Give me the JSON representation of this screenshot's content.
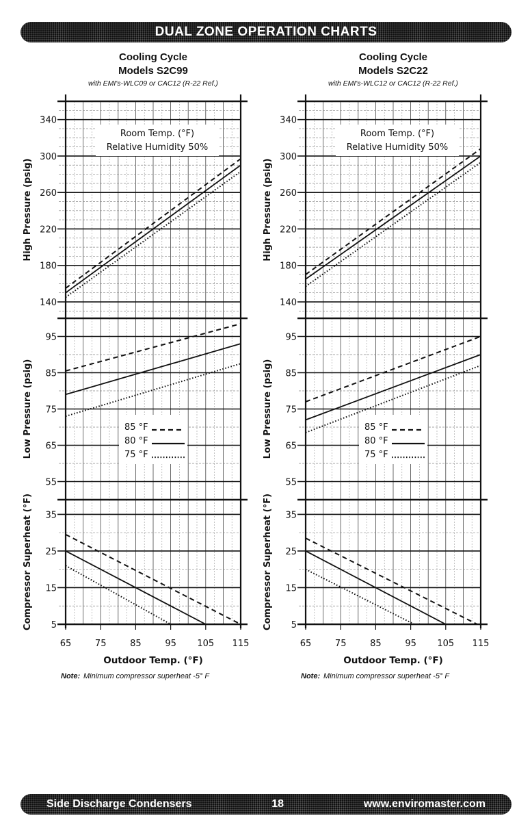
{
  "header": {
    "title": "DUAL ZONE OPERATION CHARTS"
  },
  "footer": {
    "left": "Side Discharge Condensers",
    "page": "18",
    "right": "www.enviromaster.com"
  },
  "legend": {
    "room_temp": "Room Temp. (°F)",
    "humidity": "Relative Humidity 50%",
    "entries": [
      {
        "label": "85 °F",
        "style": "dashed"
      },
      {
        "label": "80 °F",
        "style": "solid"
      },
      {
        "label": "75 °F",
        "style": "dotted"
      }
    ]
  },
  "chart_data": [
    {
      "type": "line",
      "title": "Cooling Cycle",
      "subtitle": "Models S2C99",
      "caption": "with EMI's-WLC09 or CAC12 (R-22 Ref.)",
      "xlabel": "Outdoor Temp. (°F)",
      "note_label": "Note:",
      "note": "Minimum compressor superheat -5° F",
      "x_ticks": [
        "65",
        "75",
        "85",
        "95",
        "105",
        "115"
      ],
      "xlim": [
        65,
        115
      ],
      "panels": [
        {
          "ylabel": "High Pressure (psig)",
          "ylim": [
            122,
            360
          ],
          "y_ticks": [
            "340",
            "300",
            "260",
            "220",
            "180",
            "140"
          ],
          "series": [
            {
              "name": "85 °F",
              "points": [
                [
                  65,
                  155
                ],
                [
                  115,
                  297
                ]
              ]
            },
            {
              "name": "80 °F",
              "points": [
                [
                  65,
                  150
                ],
                [
                  115,
                  290
                ]
              ]
            },
            {
              "name": "75 °F",
              "points": [
                [
                  65,
                  145
                ],
                [
                  115,
                  283
                ]
              ]
            }
          ]
        },
        {
          "ylabel": "Low Pressure (psig)",
          "ylim": [
            50,
            100
          ],
          "y_ticks": [
            "95",
            "85",
            "75",
            "65",
            "55"
          ],
          "series": [
            {
              "name": "85 °F",
              "points": [
                [
                  65,
                  85.5
                ],
                [
                  115,
                  98.5
                ]
              ]
            },
            {
              "name": "80 °F",
              "points": [
                [
                  65,
                  79
                ],
                [
                  115,
                  93
                ]
              ]
            },
            {
              "name": "75 °F",
              "points": [
                [
                  65,
                  73
                ],
                [
                  115,
                  87.5
                ]
              ]
            }
          ]
        },
        {
          "ylabel": "Compressor Superheat (°F)",
          "ylim": [
            5,
            39
          ],
          "y_ticks": [
            "35",
            "25",
            "15",
            "5"
          ],
          "series": [
            {
              "name": "85 °F",
              "points": [
                [
                  65,
                  29.5
                ],
                [
                  115,
                  5
                ]
              ]
            },
            {
              "name": "80 °F",
              "points": [
                [
                  65,
                  25
                ],
                [
                  105,
                  5
                ]
              ]
            },
            {
              "name": "75 °F",
              "points": [
                [
                  65,
                  21
                ],
                [
                  95,
                  5
                ]
              ]
            }
          ]
        }
      ]
    },
    {
      "type": "line",
      "title": "Cooling Cycle",
      "subtitle": "Models S2C22",
      "caption": "with EMI's-WLC12 or CAC12 (R-22 Ref.)",
      "xlabel": "Outdoor Temp. (°F)",
      "note_label": "Note:",
      "note": "Minimum compressor superheat -5° F",
      "x_ticks": [
        "65",
        "75",
        "85",
        "95",
        "105",
        "115"
      ],
      "xlim": [
        65,
        115
      ],
      "panels": [
        {
          "ylabel": "High Pressure (psig)",
          "ylim": [
            122,
            360
          ],
          "y_ticks": [
            "340",
            "300",
            "260",
            "220",
            "180",
            "140"
          ],
          "series": [
            {
              "name": "85 °F",
              "points": [
                [
                  65,
                  170
                ],
                [
                  115,
                  308
                ]
              ]
            },
            {
              "name": "80 °F",
              "points": [
                [
                  65,
                  165
                ],
                [
                  115,
                  300
                ]
              ]
            },
            {
              "name": "75 °F",
              "points": [
                [
                  65,
                  157
                ],
                [
                  115,
                  293
                ]
              ]
            }
          ]
        },
        {
          "ylabel": "Low Pressure (psig)",
          "ylim": [
            50,
            100
          ],
          "y_ticks": [
            "95",
            "85",
            "75",
            "65",
            "55"
          ],
          "series": [
            {
              "name": "85 °F",
              "points": [
                [
                  65,
                  77
                ],
                [
                  115,
                  95
                ]
              ]
            },
            {
              "name": "80 °F",
              "points": [
                [
                  65,
                  72
                ],
                [
                  115,
                  90
                ]
              ]
            },
            {
              "name": "75 °F",
              "points": [
                [
                  65,
                  68.5
                ],
                [
                  115,
                  87
                ]
              ]
            }
          ]
        },
        {
          "ylabel": "Compressor Superheat (°F)",
          "ylim": [
            5,
            39
          ],
          "y_ticks": [
            "35",
            "25",
            "15",
            "5"
          ],
          "series": [
            {
              "name": "85 °F",
              "points": [
                [
                  65,
                  28.5
                ],
                [
                  114,
                  5
                ]
              ]
            },
            {
              "name": "80 °F",
              "points": [
                [
                  65,
                  25
                ],
                [
                  105,
                  5
                ]
              ]
            },
            {
              "name": "75 °F",
              "points": [
                [
                  65,
                  20
                ],
                [
                  96,
                  5
                ]
              ]
            }
          ]
        }
      ]
    }
  ]
}
